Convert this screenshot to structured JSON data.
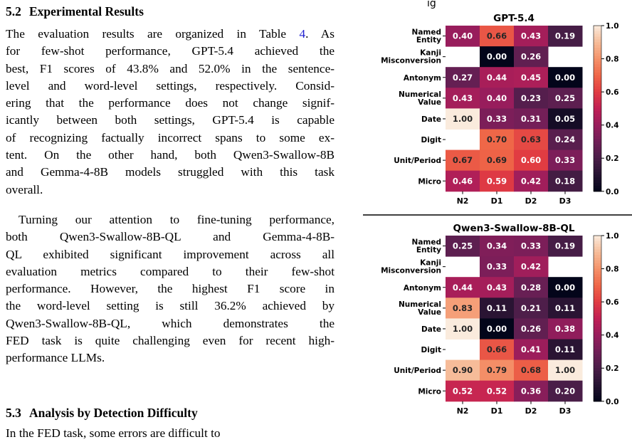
{
  "section_52": {
    "number": "5.2",
    "title": "Experimental Results",
    "para1_lines": [
      [
        "The evaluation results are organized in Table ",
        "4",
        ". As"
      ],
      [
        "for few-shot performance, GPT-5.4 achieved the"
      ],
      [
        "best, F1 scores of 43.8% and 52.0% in the sentence-"
      ],
      [
        "level and word-level settings, respectively. Consid-"
      ],
      [
        "ering that the performance does not change signif-"
      ],
      [
        "icantly between both settings, GPT-5.4 is capable"
      ],
      [
        "of recognizing factually incorrect spans to some ex-"
      ],
      [
        "tent. On the other hand, both Qwen3-Swallow-8B"
      ],
      [
        "and Gemma-4-8B models struggled with this task"
      ],
      [
        "overall."
      ]
    ],
    "para2_lines": [
      [
        "Turning our attention to fine-tuning performance,"
      ],
      [
        "both Qwen3-Swallow-8B-QL and Gemma-4-8B-"
      ],
      [
        "QL exhibited significant improvement across all"
      ],
      [
        "evaluation metrics compared to their few-shot"
      ],
      [
        "performance. However, the highest F1 score in"
      ],
      [
        "the word-level setting is still 36.2% achieved by"
      ],
      [
        "Qwen3-Swallow-8B-QL, which demonstrates the"
      ],
      [
        "FED task is quite challenging even for recent high-"
      ],
      [
        "performance LLMs."
      ]
    ]
  },
  "section_53": {
    "number": "5.3",
    "title": "Analysis by Detection Difficulty",
    "partial_line": "In the FED task, some errors are difficult to"
  },
  "figure": {
    "top_clip_text": "ig",
    "colormap": "rocket",
    "colorbar_ticks": [
      "0.0",
      "0.2",
      "0.4",
      "0.6",
      "0.8",
      "1.0"
    ]
  },
  "chart_data": [
    {
      "type": "heatmap",
      "title": "GPT-5.4",
      "columns": [
        "N2",
        "D1",
        "D2",
        "D3"
      ],
      "rows": [
        [
          "Named",
          "Entity"
        ],
        [
          "Kanji",
          "Misconversion"
        ],
        [
          "Antonym"
        ],
        [
          "Numerical",
          "Value"
        ],
        [
          "Date"
        ],
        [
          "Digit"
        ],
        [
          "Unit/Period"
        ],
        [
          "Micro"
        ]
      ],
      "values": [
        [
          0.4,
          0.66,
          0.43,
          0.19
        ],
        [
          null,
          0.0,
          0.26,
          null
        ],
        [
          0.27,
          0.44,
          0.45,
          0.0
        ],
        [
          0.43,
          0.4,
          0.23,
          0.25
        ],
        [
          1.0,
          0.33,
          0.31,
          0.05
        ],
        [
          null,
          0.7,
          0.63,
          0.24
        ],
        [
          0.67,
          0.69,
          0.6,
          0.33
        ],
        [
          0.46,
          0.59,
          0.42,
          0.18
        ]
      ],
      "labels": [
        [
          "0.40",
          "0.66",
          "0.43",
          "0.19"
        ],
        [
          "",
          "0.00",
          "0.26",
          ""
        ],
        [
          "0.27",
          "0.44",
          "0.45",
          "0.00"
        ],
        [
          "0.43",
          "0.40",
          "0.23",
          "0.25"
        ],
        [
          "1.00",
          "0.33",
          "0.31",
          "0.05"
        ],
        [
          "",
          "0.70",
          "0.63",
          "0.24"
        ],
        [
          "0.67",
          "0.69",
          "0.60",
          "0.33"
        ],
        [
          "0.46",
          "0.59",
          "0.42",
          "0.18"
        ]
      ],
      "vmin": 0.0,
      "vmax": 1.0
    },
    {
      "type": "heatmap",
      "title": "Qwen3-Swallow-8B-QL",
      "columns": [
        "N2",
        "D1",
        "D2",
        "D3"
      ],
      "rows": [
        [
          "Named",
          "Entity"
        ],
        [
          "Kanji",
          "Misconversion"
        ],
        [
          "Antonym"
        ],
        [
          "Numerical",
          "Value"
        ],
        [
          "Date"
        ],
        [
          "Digit"
        ],
        [
          "Unit/Period"
        ],
        [
          "Micro"
        ]
      ],
      "values": [
        [
          0.25,
          0.34,
          0.33,
          0.19
        ],
        [
          null,
          0.33,
          0.42,
          null
        ],
        [
          0.44,
          0.43,
          0.28,
          0.0
        ],
        [
          0.83,
          0.11,
          0.21,
          0.11
        ],
        [
          1.0,
          0.0,
          0.26,
          0.38
        ],
        [
          null,
          0.66,
          0.41,
          0.11
        ],
        [
          0.9,
          0.79,
          0.68,
          1.0
        ],
        [
          0.52,
          0.52,
          0.36,
          0.2
        ]
      ],
      "labels": [
        [
          "0.25",
          "0.34",
          "0.33",
          "0.19"
        ],
        [
          "",
          "0.33",
          "0.42",
          ""
        ],
        [
          "0.44",
          "0.43",
          "0.28",
          "0.00"
        ],
        [
          "0.83",
          "0.11",
          "0.21",
          "0.11"
        ],
        [
          "1.00",
          "0.00",
          "0.26",
          "0.38"
        ],
        [
          "",
          "0.66",
          "0.41",
          "0.11"
        ],
        [
          "0.90",
          "0.79",
          "0.68",
          "1.00"
        ],
        [
          "0.52",
          "0.52",
          "0.36",
          "0.20"
        ]
      ],
      "vmin": 0.0,
      "vmax": 1.0
    }
  ]
}
